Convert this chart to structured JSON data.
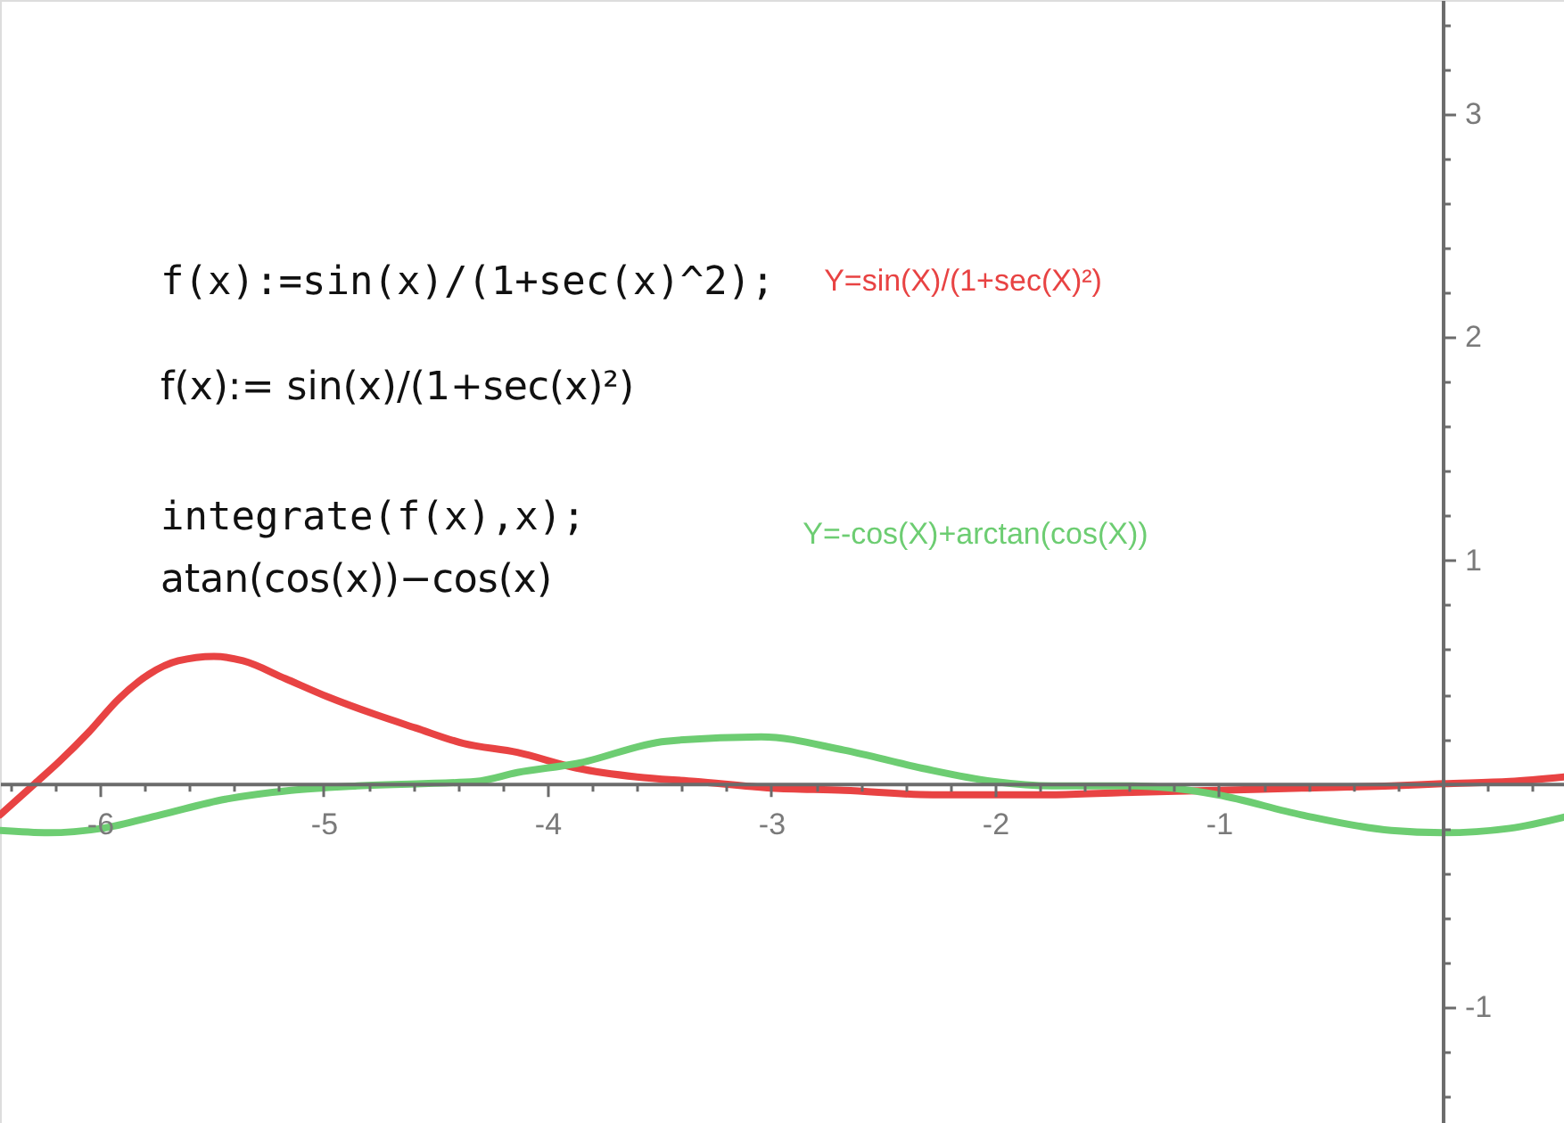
{
  "chart_data": {
    "type": "line",
    "annotations": [
      "f(x):=sin(x)/(1+sec(x)^2);",
      "f(x):= sin(x)/(1+sec(x)²)",
      "integrate(f(x),x);",
      "atan(cos(x))−cos(x)"
    ],
    "series": [
      {
        "name": "Y=sin(X)/(1+sec(X)²)",
        "color": "#e84343",
        "x": [
          -6.446,
          -6.29,
          -6.18,
          -6.05,
          -5.915,
          -5.78,
          -5.65,
          -5.49,
          -5.36,
          -5.17,
          -4.985,
          -4.77,
          -4.59,
          -4.375,
          -4.135,
          -3.87,
          -3.6,
          -3.34,
          -3.0,
          -2.675,
          -2.28,
          -1.745,
          -1.43,
          -1.006,
          -0.63,
          -0.23,
          0.0,
          0.3,
          0.542
        ],
        "values": [
          -0.14,
          0.0,
          0.1,
          0.23,
          0.38,
          0.49,
          0.55,
          0.57,
          0.55,
          0.47,
          0.39,
          0.31,
          0.25,
          0.18,
          0.14,
          0.07,
          0.03,
          0.01,
          -0.02,
          -0.03,
          -0.05,
          -0.05,
          -0.04,
          -0.03,
          -0.02,
          -0.01,
          0.0,
          0.01,
          0.03
        ]
      },
      {
        "name": "Y=-cos(X)+arctan(cos(X))",
        "color": "#6dcd72",
        "x": [
          -6.446,
          -6.23,
          -5.99,
          -5.73,
          -5.44,
          -5.145,
          -4.85,
          -4.32,
          -4.135,
          -3.87,
          -3.47,
          -3.045,
          -2.675,
          -2.33,
          -2.01,
          -1.745,
          -1.4,
          -1.21,
          -1.006,
          -0.63,
          -0.23,
          0.0,
          0.3,
          0.542
        ],
        "values": [
          -0.21,
          -0.22,
          -0.2,
          -0.14,
          -0.07,
          -0.03,
          -0.01,
          0.01,
          0.05,
          0.09,
          0.19,
          0.21,
          0.15,
          0.07,
          0.01,
          -0.01,
          -0.01,
          -0.02,
          -0.05,
          -0.14,
          -0.21,
          -0.22,
          -0.2,
          -0.15
        ]
      }
    ],
    "xlim": [
      -6.446,
      0.542
    ],
    "ylim": [
      -1.52,
      3.51
    ],
    "xticks": [
      {
        "value": -6.4,
        "label": null
      },
      {
        "value": -6.2,
        "label": null
      },
      -6,
      {
        "value": -5.8,
        "label": null
      },
      {
        "value": -5.6,
        "label": null
      },
      {
        "value": -5.4,
        "label": null
      },
      {
        "value": -5.2,
        "label": null
      },
      -5,
      {
        "value": -4.8,
        "label": null
      },
      {
        "value": -4.6,
        "label": null
      },
      {
        "value": -4.4,
        "label": null
      },
      {
        "value": -4.2,
        "label": null
      },
      -4,
      {
        "value": -3.8,
        "label": null
      },
      {
        "value": -3.6,
        "label": null
      },
      {
        "value": -3.4,
        "label": null
      },
      {
        "value": -3.2,
        "label": null
      },
      -3,
      {
        "value": -2.8,
        "label": null
      },
      {
        "value": -2.6,
        "label": null
      },
      {
        "value": -2.4,
        "label": null
      },
      {
        "value": -2.2,
        "label": null
      },
      -2,
      {
        "value": -1.8,
        "label": null
      },
      {
        "value": -1.6,
        "label": null
      },
      {
        "value": -1.4,
        "label": null
      },
      {
        "value": -1.2,
        "label": null
      },
      -1,
      {
        "value": -0.8,
        "label": null
      },
      {
        "value": -0.6,
        "label": null
      },
      {
        "value": -0.4,
        "label": null
      },
      {
        "value": -0.2,
        "label": null
      },
      {
        "value": 0.2,
        "label": null
      },
      {
        "value": 0.4,
        "label": null
      }
    ],
    "yticks": [
      {
        "value": -1.4,
        "label": null
      },
      {
        "value": -1.2,
        "label": null
      },
      -1,
      {
        "value": -0.8,
        "label": null
      },
      {
        "value": -0.6,
        "label": null
      },
      {
        "value": -0.4,
        "label": null
      },
      {
        "value": -0.2,
        "label": null
      },
      {
        "value": 0.2,
        "label": null
      },
      {
        "value": 0.4,
        "label": null
      },
      {
        "value": 0.6,
        "label": null
      },
      {
        "value": 0.8,
        "label": null
      },
      1,
      {
        "value": 1.2,
        "label": null
      },
      {
        "value": 1.4,
        "label": null
      },
      {
        "value": 1.6,
        "label": null
      },
      {
        "value": 1.8,
        "label": null
      },
      2,
      {
        "value": 2.2,
        "label": null
      },
      {
        "value": 2.4,
        "label": null
      },
      {
        "value": 2.6,
        "label": null
      },
      {
        "value": 2.8,
        "label": null
      },
      3,
      {
        "value": 3.2,
        "label": null
      },
      {
        "value": 3.4,
        "label": null
      }
    ]
  }
}
